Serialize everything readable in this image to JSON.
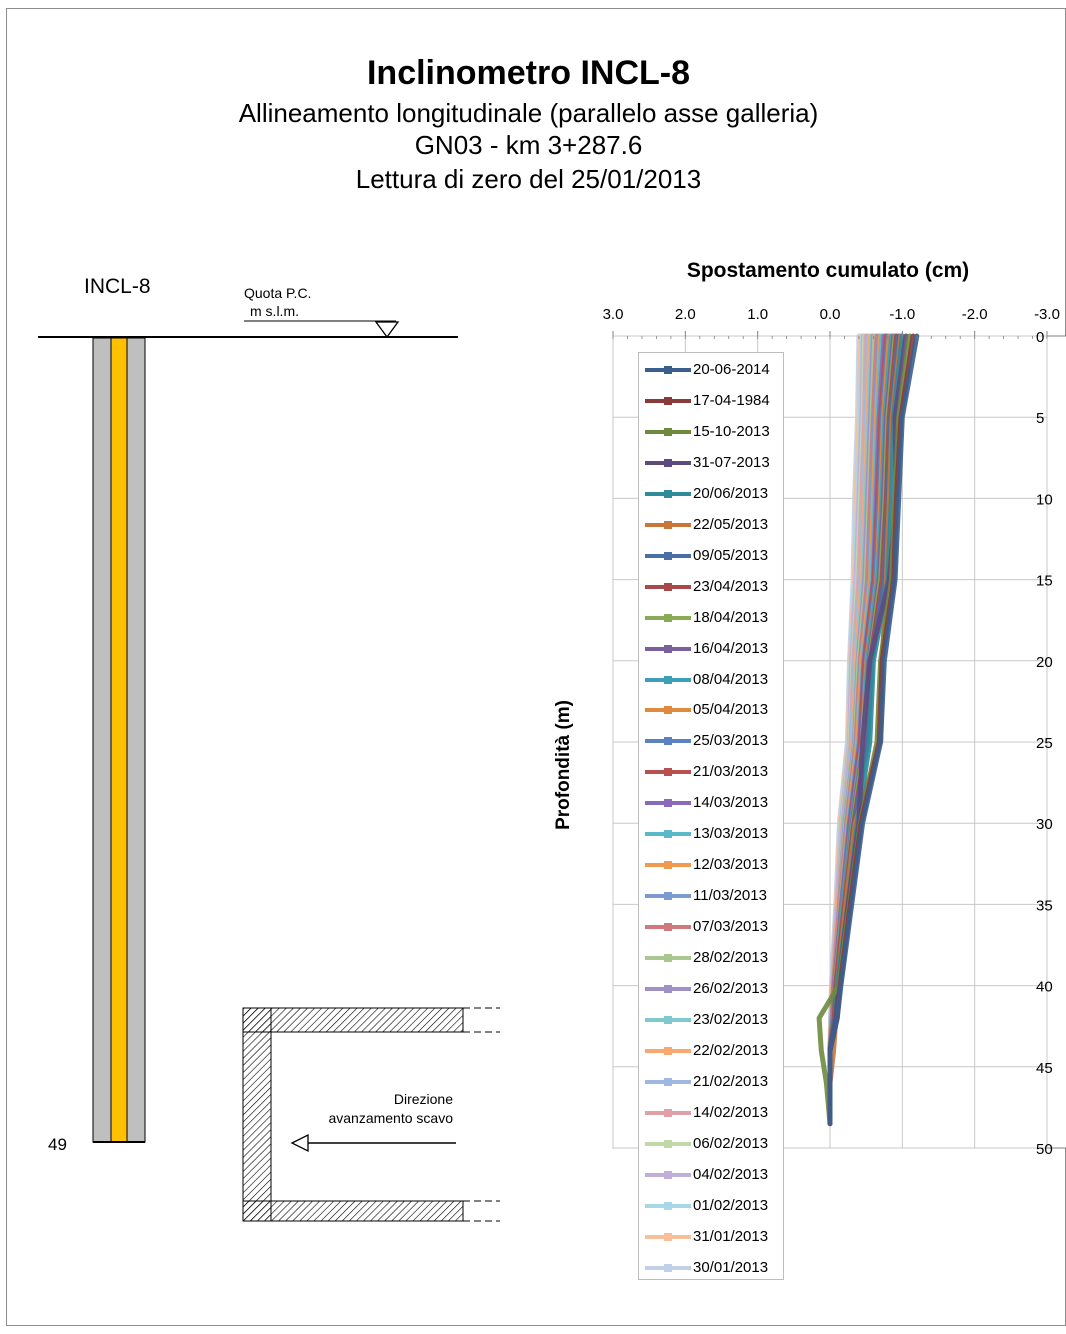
{
  "header": {
    "title": "Inclinometro INCL-8",
    "line1": "Allineamento longitudinale (parallelo asse galleria)",
    "line2": "GN03 - km 3+287.6",
    "line3": "Lettura di zero del 25/01/2013"
  },
  "schematic": {
    "label": "INCL-8",
    "quota_line1": "Quota P.C.",
    "quota_line2": "m s.l.m.",
    "depth_label": "49",
    "direction_line1": "Direzione",
    "direction_line2": "avanzamento scavo",
    "colors": {
      "tube_outer": "#bfbfbf",
      "tube_core": "#ffc000"
    }
  },
  "chart_data": {
    "type": "line",
    "title": "Spostamento cumulato (cm)",
    "xlabel": "",
    "ylabel": "Profondità (m)",
    "xlim": [
      3.0,
      -3.0
    ],
    "ylim": [
      0,
      50
    ],
    "x_ticks": [
      "3.0",
      "2.0",
      "1.0",
      "0.0",
      "-1.0",
      "-2.0",
      "-3.0"
    ],
    "y_ticks": [
      "0",
      "5",
      "10",
      "15",
      "20",
      "25",
      "30",
      "35",
      "40",
      "45",
      "50"
    ],
    "grid": true,
    "legend_position": "left-inside",
    "legend": [
      "20-06-2014",
      "17-04-1984",
      "15-10-2013",
      "31-07-2013",
      "20/06/2013",
      "22/05/2013",
      "09/05/2013",
      "23/04/2013",
      "18/04/2013",
      "16/04/2013",
      "08/04/2013",
      "05/04/2013",
      "25/03/2013",
      "21/03/2013",
      "14/03/2013",
      "13/03/2013",
      "12/03/2013",
      "11/03/2013",
      "07/03/2013",
      "28/02/2013",
      "26/02/2013",
      "23/02/2013",
      "22/02/2013",
      "21/02/2013",
      "14/02/2013",
      "06/02/2013",
      "04/02/2013",
      "01/02/2013",
      "31/01/2013",
      "30/01/2013"
    ],
    "colors": [
      "#3a5f8f",
      "#8b3a3a",
      "#6e8a3e",
      "#5e4a7e",
      "#2f8a9a",
      "#c8763a",
      "#4a6fa5",
      "#a84848",
      "#8aab55",
      "#7a619e",
      "#3fa0b5",
      "#e08a40",
      "#5a82c0",
      "#b85050",
      "#8a6ab8",
      "#5ab8c8",
      "#f09a50",
      "#7a9ad0",
      "#d07880",
      "#a8c890",
      "#a090c8",
      "#80c8d0",
      "#f8a870",
      "#a0b8e0",
      "#e0a0a8",
      "#c0d8a8",
      "#c0b0d8",
      "#a8d8e8",
      "#f8c098",
      "#c0d0e8"
    ],
    "depths": [
      0,
      5,
      10,
      15,
      20,
      25,
      30,
      35,
      40,
      42,
      44,
      46,
      48.5
    ],
    "series": [
      {
        "name": "20-06-2014",
        "values": [
          -1.2,
          -1.0,
          -0.95,
          -0.9,
          -0.75,
          -0.7,
          -0.45,
          -0.3,
          -0.15,
          -0.1,
          0.0,
          0.0,
          0.0
        ]
      },
      {
        "name": "17-04-1984",
        "values": [
          -1.15,
          -0.98,
          -0.92,
          -0.88,
          -0.72,
          -0.68,
          -0.43,
          -0.28,
          -0.14,
          -0.1,
          0.0,
          0.0,
          0.0
        ]
      },
      {
        "name": "15-10-2013",
        "values": [
          -1.1,
          -0.95,
          -0.9,
          -0.85,
          -0.7,
          -0.65,
          -0.42,
          -0.27,
          -0.12,
          0.15,
          0.12,
          0.05,
          0.0
        ]
      },
      {
        "name": "31-07-2013",
        "values": [
          -1.05,
          -0.9,
          -0.92,
          -0.82,
          -0.55,
          -0.45,
          -0.4,
          -0.25,
          -0.12,
          -0.08,
          0.0,
          0.0,
          0.0
        ]
      },
      {
        "name": "20/06/2013",
        "values": [
          -1.0,
          -0.88,
          -0.85,
          -0.8,
          -0.6,
          -0.55,
          -0.38,
          -0.25,
          -0.1,
          -0.08,
          0.0,
          0.0,
          0.0
        ]
      },
      {
        "name": "22/05/2013",
        "values": [
          -0.98,
          -0.86,
          -0.82,
          -0.78,
          -0.72,
          -0.7,
          -0.35,
          -0.22,
          -0.1,
          -0.08,
          -0.05,
          0.0,
          0.0
        ]
      },
      {
        "name": "09/05/2013",
        "values": [
          -0.95,
          -0.84,
          -0.8,
          -0.75,
          -0.58,
          -0.52,
          -0.34,
          -0.22,
          -0.1,
          -0.07,
          0.0,
          0.0,
          0.0
        ]
      },
      {
        "name": "23/04/2013",
        "values": [
          -0.92,
          -0.82,
          -0.78,
          -0.72,
          -0.56,
          -0.5,
          -0.33,
          -0.2,
          -0.08,
          -0.06,
          0.0,
          0.0,
          0.0
        ]
      },
      {
        "name": "18/04/2013",
        "values": [
          -0.9,
          -0.8,
          -0.76,
          -0.7,
          -0.55,
          -0.48,
          -0.32,
          -0.2,
          -0.08,
          -0.06,
          0.0,
          0.0,
          0.0
        ]
      },
      {
        "name": "16/04/2013",
        "values": [
          -0.88,
          -0.78,
          -0.74,
          -0.68,
          -0.54,
          -0.47,
          -0.31,
          -0.2,
          -0.08,
          -0.06,
          0.0,
          0.0,
          0.0
        ]
      },
      {
        "name": "08/04/2013",
        "values": [
          -0.85,
          -0.76,
          -0.72,
          -0.66,
          -0.52,
          -0.46,
          -0.3,
          -0.18,
          -0.08,
          -0.05,
          0.0,
          0.0,
          0.0
        ]
      },
      {
        "name": "05/04/2013",
        "values": [
          -0.82,
          -0.74,
          -0.7,
          -0.65,
          -0.51,
          -0.45,
          -0.3,
          -0.18,
          -0.07,
          -0.05,
          0.0,
          0.0,
          0.0
        ]
      },
      {
        "name": "25/03/2013",
        "values": [
          -0.8,
          -0.72,
          -0.68,
          -0.63,
          -0.5,
          -0.44,
          -0.29,
          -0.17,
          -0.07,
          -0.05,
          0.0,
          0.0,
          0.0
        ]
      },
      {
        "name": "21/03/2013",
        "values": [
          -0.78,
          -0.7,
          -0.66,
          -0.61,
          -0.48,
          -0.42,
          -0.28,
          -0.17,
          -0.07,
          -0.05,
          0.0,
          0.0,
          0.0
        ]
      },
      {
        "name": "14/03/2013",
        "values": [
          -0.75,
          -0.68,
          -0.64,
          -0.6,
          -0.47,
          -0.41,
          -0.27,
          -0.16,
          -0.06,
          -0.04,
          0.0,
          0.0,
          0.0
        ]
      },
      {
        "name": "13/03/2013",
        "values": [
          -0.72,
          -0.66,
          -0.62,
          -0.58,
          -0.46,
          -0.4,
          -0.26,
          -0.16,
          -0.06,
          -0.04,
          0.0,
          0.0,
          0.0
        ]
      },
      {
        "name": "12/03/2013",
        "values": [
          -0.7,
          -0.64,
          -0.6,
          -0.56,
          -0.44,
          -0.38,
          -0.25,
          -0.15,
          -0.06,
          -0.04,
          0.0,
          0.0,
          0.0
        ]
      },
      {
        "name": "11/03/2013",
        "values": [
          -0.68,
          -0.62,
          -0.58,
          -0.54,
          -0.43,
          -0.37,
          -0.24,
          -0.15,
          -0.06,
          -0.04,
          0.0,
          0.0,
          0.0
        ]
      },
      {
        "name": "07/03/2013",
        "values": [
          -0.65,
          -0.6,
          -0.56,
          -0.52,
          -0.42,
          -0.36,
          -0.23,
          -0.14,
          -0.05,
          -0.03,
          0.0,
          0.0,
          0.0
        ]
      },
      {
        "name": "28/02/2013",
        "values": [
          -0.62,
          -0.58,
          -0.54,
          -0.5,
          -0.4,
          -0.35,
          -0.22,
          -0.14,
          -0.05,
          -0.03,
          0.0,
          0.0,
          0.0
        ]
      },
      {
        "name": "26/02/2013",
        "values": [
          -0.6,
          -0.56,
          -0.52,
          -0.48,
          -0.39,
          -0.34,
          -0.21,
          -0.13,
          -0.05,
          -0.03,
          0.0,
          0.0,
          0.0
        ]
      },
      {
        "name": "23/02/2013",
        "values": [
          -0.58,
          -0.54,
          -0.5,
          -0.46,
          -0.38,
          -0.33,
          -0.2,
          -0.13,
          -0.05,
          -0.03,
          0.0,
          0.0,
          0.0
        ]
      },
      {
        "name": "22/02/2013",
        "values": [
          -0.55,
          -0.52,
          -0.48,
          -0.44,
          -0.36,
          -0.32,
          -0.2,
          -0.12,
          -0.04,
          -0.02,
          0.0,
          0.0,
          0.0
        ]
      },
      {
        "name": "21/02/2013",
        "values": [
          -0.52,
          -0.5,
          -0.46,
          -0.42,
          -0.34,
          -0.3,
          -0.19,
          -0.12,
          -0.04,
          -0.02,
          0.0,
          0.0,
          0.0
        ]
      },
      {
        "name": "14/02/2013",
        "values": [
          -0.5,
          -0.48,
          -0.44,
          -0.4,
          -0.33,
          -0.29,
          -0.18,
          -0.11,
          -0.04,
          -0.02,
          0.0,
          0.0,
          0.0
        ]
      },
      {
        "name": "06/02/2013",
        "values": [
          -0.48,
          -0.46,
          -0.42,
          -0.38,
          -0.32,
          -0.28,
          -0.17,
          -0.11,
          -0.04,
          -0.02,
          0.0,
          0.0,
          0.0
        ]
      },
      {
        "name": "04/02/2013",
        "values": [
          -0.46,
          -0.44,
          -0.4,
          -0.36,
          -0.3,
          -0.27,
          -0.16,
          -0.1,
          -0.03,
          -0.02,
          0.0,
          0.0,
          0.0
        ]
      },
      {
        "name": "01/02/2013",
        "values": [
          -0.44,
          -0.42,
          -0.38,
          -0.35,
          -0.29,
          -0.26,
          -0.15,
          -0.1,
          -0.03,
          -0.01,
          0.0,
          0.0,
          0.0
        ]
      },
      {
        "name": "31/01/2013",
        "values": [
          -0.42,
          -0.4,
          -0.36,
          -0.34,
          -0.28,
          -0.25,
          -0.14,
          -0.09,
          -0.03,
          -0.01,
          0.0,
          0.0,
          0.0
        ]
      },
      {
        "name": "30/01/2013",
        "values": [
          -0.4,
          -0.38,
          -0.34,
          -0.32,
          -0.27,
          -0.24,
          -0.13,
          -0.08,
          -0.02,
          -0.01,
          0.0,
          0.0,
          0.0
        ]
      }
    ]
  }
}
